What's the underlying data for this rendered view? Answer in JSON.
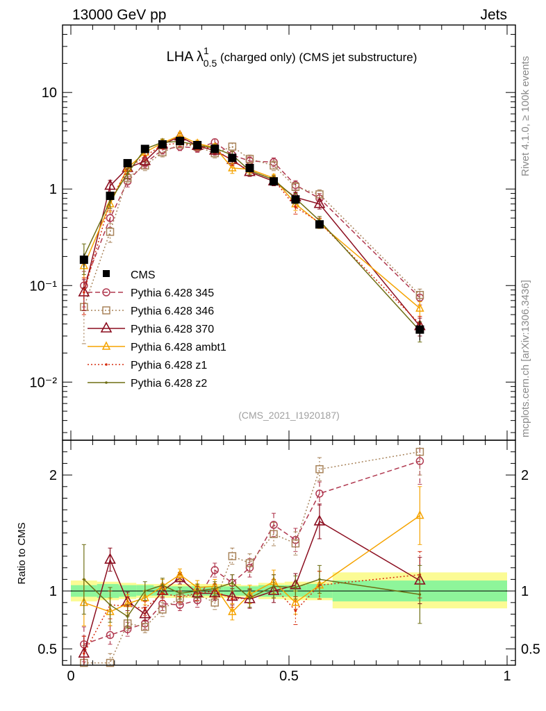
{
  "header": {
    "left": "13000 GeV pp",
    "right": "Jets"
  },
  "title": {
    "prefix": "LHA λ",
    "superscript": "1",
    "subscript": "0.5",
    "suffix": " (charged only) (CMS jet substructure)"
  },
  "side_labels": {
    "rivet": "Rivet 4.1.0, ≥ 100k events",
    "mcplots": "mcplots.cern.ch [arXiv:1306.3436]"
  },
  "analysis_tag": "(CMS_2021_I1920187)",
  "legend": {
    "data_label": "CMS",
    "entries": [
      "Pythia 6.428 345",
      "Pythia 6.428 346",
      "Pythia 6.428 370",
      "Pythia 6.428 ambt1",
      "Pythia 6.428 z1",
      "Pythia 6.428 z2"
    ]
  },
  "ratio_ylabel": "Ratio to CMS",
  "colors": {
    "data": "#000000",
    "p345": "#b0384f",
    "p346": "#a8835a",
    "p370": "#8b0d1f",
    "ambt1": "#f5a300",
    "z1": "#d62d0f",
    "z2": "#6e6e14",
    "band_inner": "#8ef59a",
    "band_outer": "#fbfb94"
  },
  "chart_data": [
    {
      "panel": "main",
      "type": "line",
      "yscale": "log",
      "xlim": [
        0,
        1
      ],
      "ylim": [
        0.0025,
        50
      ],
      "ytick_labels": [
        "10",
        "1",
        "10⁻¹",
        "10⁻²"
      ],
      "ytick_values": [
        10,
        1,
        0.1,
        0.01
      ],
      "x": [
        0.03,
        0.09,
        0.13,
        0.17,
        0.21,
        0.25,
        0.29,
        0.33,
        0.37,
        0.41,
        0.465,
        0.515,
        0.57,
        0.8
      ],
      "data": {
        "name": "CMS",
        "values": [
          0.185,
          0.85,
          1.85,
          2.6,
          2.9,
          3.15,
          2.85,
          2.6,
          2.1,
          1.65,
          1.2,
          0.78,
          0.43,
          0.035
        ],
        "errors": [
          0.03,
          0.09,
          0.15,
          0.2,
          0.2,
          0.2,
          0.2,
          0.2,
          0.15,
          0.12,
          0.09,
          0.07,
          0.04,
          0.008
        ]
      },
      "series": [
        {
          "name": "Pythia 6.428 345",
          "key": "p345",
          "values": [
            0.1,
            0.5,
            1.2,
            1.85,
            2.55,
            2.75,
            2.65,
            3.05,
            2.25,
            1.95,
            1.9,
            1.1,
            0.8,
            0.075
          ],
          "errors": [
            0.04,
            0.1,
            0.15,
            0.2,
            0.25,
            0.25,
            0.25,
            0.25,
            0.2,
            0.2,
            0.2,
            0.12,
            0.1,
            0.012
          ]
        },
        {
          "name": "Pythia 6.428 346",
          "key": "p346",
          "values": [
            0.06,
            0.36,
            1.3,
            1.75,
            2.4,
            2.9,
            2.75,
            2.35,
            2.75,
            2.05,
            1.75,
            1.05,
            0.88,
            0.08
          ],
          "errors": [
            0.035,
            0.08,
            0.15,
            0.2,
            0.25,
            0.25,
            0.25,
            0.25,
            0.25,
            0.2,
            0.2,
            0.12,
            0.1,
            0.012
          ]
        },
        {
          "name": "Pythia 6.428 370",
          "key": "p370",
          "values": [
            0.085,
            1.08,
            1.65,
            1.95,
            2.9,
            3.5,
            2.8,
            2.5,
            2.0,
            1.5,
            1.2,
            0.82,
            0.7,
            0.038
          ],
          "errors": [
            0.03,
            0.15,
            0.2,
            0.2,
            0.25,
            0.25,
            0.25,
            0.25,
            0.2,
            0.15,
            0.12,
            0.1,
            0.08,
            0.008
          ]
        },
        {
          "name": "Pythia 6.428 ambt1",
          "key": "ambt1",
          "values": [
            0.16,
            0.7,
            1.65,
            2.4,
            3.0,
            3.6,
            2.95,
            2.7,
            1.65,
            1.6,
            1.3,
            0.7,
            0.44,
            0.058
          ],
          "errors": [
            0.04,
            0.12,
            0.2,
            0.2,
            0.25,
            0.25,
            0.25,
            0.25,
            0.2,
            0.15,
            0.12,
            0.1,
            0.05,
            0.01
          ]
        },
        {
          "name": "Pythia 6.428 z1",
          "key": "z1",
          "values": [
            0.085,
            0.75,
            1.6,
            2.2,
            2.85,
            3.0,
            2.8,
            2.6,
            1.95,
            1.55,
            1.25,
            0.65,
            0.45,
            0.04
          ],
          "errors": [
            0.035,
            0.12,
            0.18,
            0.2,
            0.25,
            0.25,
            0.25,
            0.25,
            0.2,
            0.15,
            0.12,
            0.1,
            0.05,
            0.008
          ]
        },
        {
          "name": "Pythia 6.428 z2",
          "key": "z2",
          "values": [
            0.2,
            0.75,
            1.45,
            2.6,
            3.05,
            3.1,
            2.85,
            2.65,
            2.25,
            1.55,
            1.25,
            0.8,
            0.47,
            0.034
          ],
          "errors": [
            0.07,
            0.12,
            0.18,
            0.2,
            0.25,
            0.25,
            0.25,
            0.25,
            0.2,
            0.15,
            0.12,
            0.1,
            0.05,
            0.008
          ]
        }
      ]
    },
    {
      "panel": "ratio",
      "type": "line",
      "ylabel": "Ratio to CMS",
      "xlim": [
        0,
        1
      ],
      "ylim": [
        0.36,
        2.3
      ],
      "xtick_labels": [
        "0",
        "0.5",
        "1"
      ],
      "xtick_values": [
        0,
        0.5,
        1
      ],
      "ytick_labels": [
        "0.5",
        "1",
        "2"
      ],
      "ytick_values": [
        0.5,
        1,
        2
      ],
      "bins": [
        [
          0,
          0.06
        ],
        [
          0.06,
          0.11
        ],
        [
          0.11,
          0.15
        ],
        [
          0.15,
          0.19
        ],
        [
          0.19,
          0.23
        ],
        [
          0.23,
          0.27
        ],
        [
          0.27,
          0.31
        ],
        [
          0.31,
          0.35
        ],
        [
          0.35,
          0.39
        ],
        [
          0.39,
          0.43
        ],
        [
          0.43,
          0.49
        ],
        [
          0.49,
          0.54
        ],
        [
          0.54,
          0.6
        ],
        [
          0.6,
          1
        ]
      ],
      "band_inner": [
        [
          0.95,
          1.05
        ],
        [
          0.94,
          1.06
        ],
        [
          0.95,
          1.05
        ],
        [
          0.96,
          1.05
        ],
        [
          0.96,
          1.04
        ],
        [
          0.96,
          1.04
        ],
        [
          0.96,
          1.04
        ],
        [
          0.96,
          1.04
        ],
        [
          0.96,
          1.04
        ],
        [
          0.96,
          1.04
        ],
        [
          0.95,
          1.05
        ],
        [
          0.95,
          1.05
        ],
        [
          0.94,
          1.06
        ],
        [
          0.91,
          1.09
        ]
      ],
      "band_outer": [
        [
          0.91,
          1.09
        ],
        [
          0.92,
          1.08
        ],
        [
          0.93,
          1.07
        ],
        [
          0.94,
          1.06
        ],
        [
          0.94,
          1.06
        ],
        [
          0.94,
          1.06
        ],
        [
          0.94,
          1.06
        ],
        [
          0.94,
          1.06
        ],
        [
          0.94,
          1.06
        ],
        [
          0.95,
          1.05
        ],
        [
          0.93,
          1.07
        ],
        [
          0.92,
          1.08
        ],
        [
          0.92,
          1.08
        ],
        [
          0.85,
          1.16
        ]
      ],
      "series": [
        {
          "name": "Pythia 6.428 345",
          "key": "p345",
          "values": [
            0.54,
            0.62,
            0.67,
            0.72,
            0.89,
            0.88,
            0.92,
            1.18,
            1.07,
            1.2,
            1.57,
            1.44,
            1.84,
            2.12
          ],
          "errors": [
            0.15,
            0.08,
            0.06,
            0.05,
            0.06,
            0.05,
            0.06,
            0.06,
            0.07,
            0.08,
            0.1,
            0.1,
            0.1,
            0.2
          ]
        },
        {
          "name": "Pythia 6.428 346",
          "key": "p346",
          "values": [
            0.38,
            0.38,
            0.72,
            0.69,
            0.84,
            0.94,
            0.97,
            0.9,
            1.3,
            1.24,
            1.49,
            1.41,
            2.05,
            2.2
          ],
          "errors": [
            0.15,
            0.08,
            0.06,
            0.05,
            0.06,
            0.05,
            0.06,
            0.06,
            0.07,
            0.08,
            0.1,
            0.1,
            0.1,
            0.2
          ]
        },
        {
          "name": "Pythia 6.428 370",
          "key": "p370",
          "values": [
            0.46,
            1.27,
            0.91,
            0.8,
            1.0,
            1.11,
            0.98,
            0.98,
            0.95,
            0.93,
            1.0,
            1.05,
            1.6,
            1.09
          ],
          "errors": [
            0.15,
            0.1,
            0.08,
            0.06,
            0.06,
            0.05,
            0.06,
            0.06,
            0.07,
            0.08,
            0.1,
            0.1,
            0.15,
            0.2
          ]
        },
        {
          "name": "Pythia 6.428 ambt1",
          "key": "ambt1",
          "values": [
            0.9,
            0.82,
            0.89,
            0.94,
            1.04,
            1.14,
            1.03,
            1.04,
            0.82,
            0.97,
            1.08,
            0.9,
            1.05,
            1.65
          ],
          "errors": [
            0.2,
            0.12,
            0.08,
            0.06,
            0.06,
            0.05,
            0.06,
            0.06,
            0.07,
            0.08,
            0.1,
            0.1,
            0.12,
            0.25
          ]
        },
        {
          "name": "Pythia 6.428 z1",
          "key": "z1",
          "values": [
            0.46,
            0.88,
            0.87,
            0.85,
            0.98,
            0.95,
            0.98,
            1.0,
            0.93,
            0.94,
            1.04,
            0.83,
            1.05,
            1.14
          ],
          "errors": [
            0.15,
            0.12,
            0.08,
            0.06,
            0.06,
            0.05,
            0.06,
            0.06,
            0.07,
            0.08,
            0.1,
            0.12,
            0.12,
            0.2
          ]
        },
        {
          "name": "Pythia 6.428 z2",
          "key": "z2",
          "values": [
            1.1,
            0.88,
            0.78,
            1.0,
            1.05,
            0.98,
            1.0,
            1.02,
            1.07,
            0.94,
            1.04,
            1.03,
            1.1,
            0.97
          ],
          "errors": [
            0.3,
            0.15,
            0.1,
            0.08,
            0.06,
            0.05,
            0.06,
            0.06,
            0.07,
            0.08,
            0.1,
            0.1,
            0.12,
            0.25
          ]
        }
      ]
    }
  ]
}
